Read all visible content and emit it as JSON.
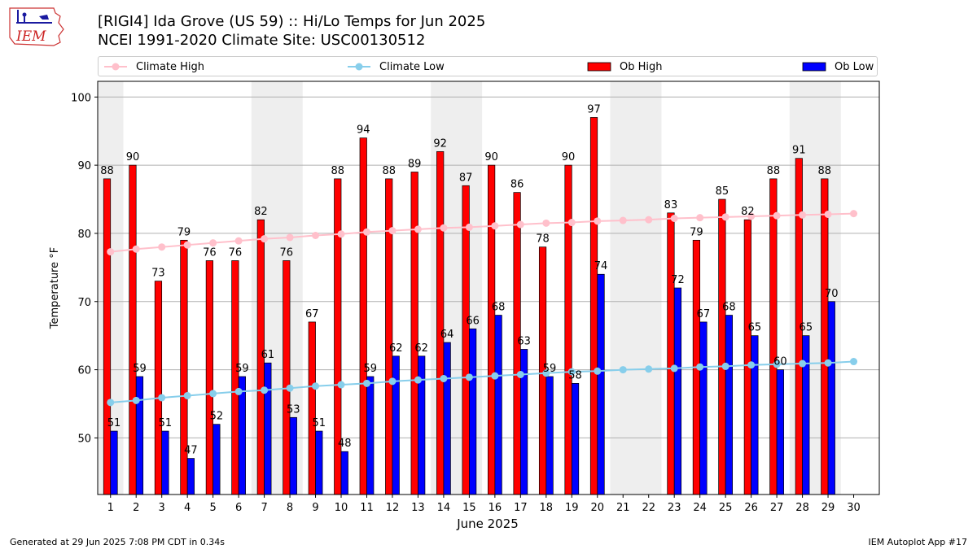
{
  "header": {
    "logo_text": "IEM",
    "title_line1": "[RIGI4] Ida Grove (US 59) :: Hi/Lo Temps for Jun 2025",
    "title_line2": "NCEI 1991-2020 Climate Site: USC00130512"
  },
  "legend": {
    "placement": "top, above plot",
    "items": [
      {
        "label": "Climate High",
        "color": "#ffc0cb",
        "kind": "line-marker"
      },
      {
        "label": "Climate Low",
        "color": "#87ceeb",
        "kind": "line-marker"
      },
      {
        "label": "Ob High",
        "color": "#ff0000",
        "kind": "bar"
      },
      {
        "label": "Ob Low",
        "color": "#0000ff",
        "kind": "bar"
      }
    ]
  },
  "chart_data": {
    "type": "bar",
    "title": "[RIGI4] Ida Grove (US 59) :: Hi/Lo Temps for Jun 2025",
    "subtitle": "NCEI 1991-2020 Climate Site: USC00130512",
    "xlabel": "June 2025",
    "ylabel": "Temperature °F",
    "ylim": [
      41.7,
      102.3
    ],
    "yticks": [
      50,
      60,
      70,
      80,
      90,
      100
    ],
    "grid": "horizontal",
    "categories": [
      "1",
      "2",
      "3",
      "4",
      "5",
      "6",
      "7",
      "8",
      "9",
      "10",
      "11",
      "12",
      "13",
      "14",
      "15",
      "16",
      "17",
      "18",
      "19",
      "20",
      "21",
      "22",
      "23",
      "24",
      "25",
      "26",
      "27",
      "28",
      "29",
      "30"
    ],
    "weekend_shaded_days": [
      1,
      7,
      8,
      14,
      15,
      21,
      22,
      28,
      29
    ],
    "series": [
      {
        "name": "Ob High",
        "type": "bar",
        "color": "#ff0000",
        "values": [
          88,
          90,
          73,
          79,
          76,
          76,
          82,
          76,
          67,
          88,
          94,
          88,
          89,
          92,
          87,
          90,
          86,
          78,
          90,
          97,
          null,
          null,
          83,
          79,
          85,
          82,
          88,
          91,
          88,
          null
        ]
      },
      {
        "name": "Ob Low",
        "type": "bar",
        "color": "#0000ff",
        "values": [
          51,
          59,
          51,
          47,
          52,
          59,
          61,
          53,
          51,
          48,
          59,
          62,
          62,
          64,
          66,
          68,
          63,
          59,
          58,
          74,
          null,
          null,
          72,
          67,
          68,
          65,
          60,
          65,
          70,
          null
        ]
      },
      {
        "name": "Climate High",
        "type": "line",
        "color": "#ffc0cb",
        "values": [
          77.3,
          77.7,
          78.0,
          78.3,
          78.6,
          78.9,
          79.2,
          79.4,
          79.7,
          79.9,
          80.2,
          80.4,
          80.6,
          80.8,
          80.9,
          81.1,
          81.3,
          81.5,
          81.6,
          81.8,
          81.9,
          82.0,
          82.2,
          82.3,
          82.4,
          82.5,
          82.6,
          82.7,
          82.8,
          82.9
        ]
      },
      {
        "name": "Climate Low",
        "type": "line",
        "color": "#87ceeb",
        "values": [
          55.2,
          55.5,
          55.9,
          56.2,
          56.5,
          56.8,
          57.0,
          57.3,
          57.6,
          57.8,
          58.0,
          58.3,
          58.5,
          58.7,
          58.9,
          59.1,
          59.3,
          59.5,
          59.7,
          59.8,
          60.0,
          60.1,
          60.2,
          60.4,
          60.5,
          60.7,
          60.8,
          60.9,
          61.0,
          61.2
        ]
      }
    ]
  },
  "footer": {
    "left": "Generated at 29 Jun 2025 7:08 PM CDT in 0.34s",
    "right": "IEM Autoplot App #17"
  }
}
